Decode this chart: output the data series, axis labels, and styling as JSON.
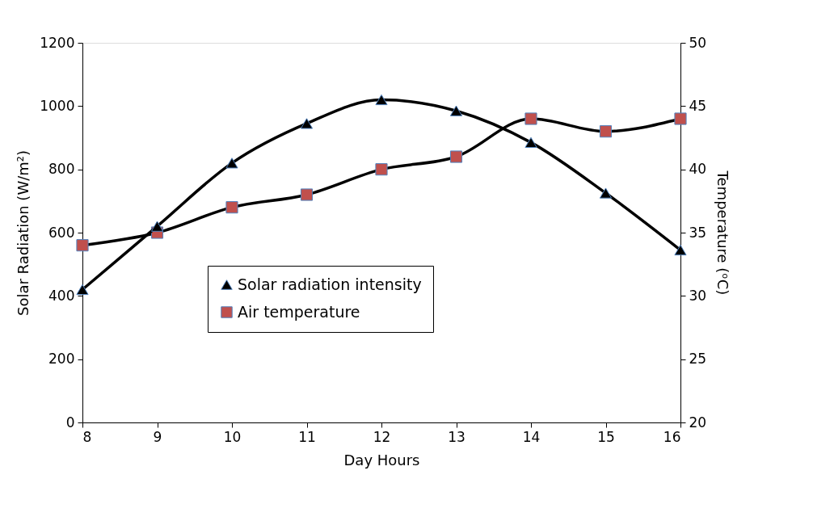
{
  "chart_data": {
    "type": "line",
    "xlabel": "Day Hours",
    "ylabel": "Solar Radiation (W/m²)",
    "y2label": "Temperature (ᵒC)",
    "x": [
      8,
      9,
      10,
      11,
      12,
      13,
      14,
      15,
      16
    ],
    "xlim": [
      8,
      16
    ],
    "xticks": [
      8,
      9,
      10,
      11,
      12,
      13,
      14,
      15,
      16
    ],
    "ylim": [
      0,
      1200
    ],
    "yticks": [
      0,
      200,
      400,
      600,
      800,
      1000,
      1200
    ],
    "y2lim": [
      20,
      50
    ],
    "y2ticks": [
      20,
      25,
      30,
      35,
      40,
      45,
      50
    ],
    "grid": false,
    "legend": "center",
    "series": [
      {
        "name": "Solar radiation intensity",
        "color": "#000000",
        "marker": "triangle",
        "values": [
          420,
          620,
          820,
          945,
          1020,
          985,
          885,
          725,
          545
        ]
      },
      {
        "name": "Air temperature",
        "color": "#c0504d",
        "marker": "square",
        "axis": "y2",
        "values": [
          34,
          35,
          37,
          38,
          40,
          41,
          44,
          43,
          44
        ]
      }
    ]
  }
}
